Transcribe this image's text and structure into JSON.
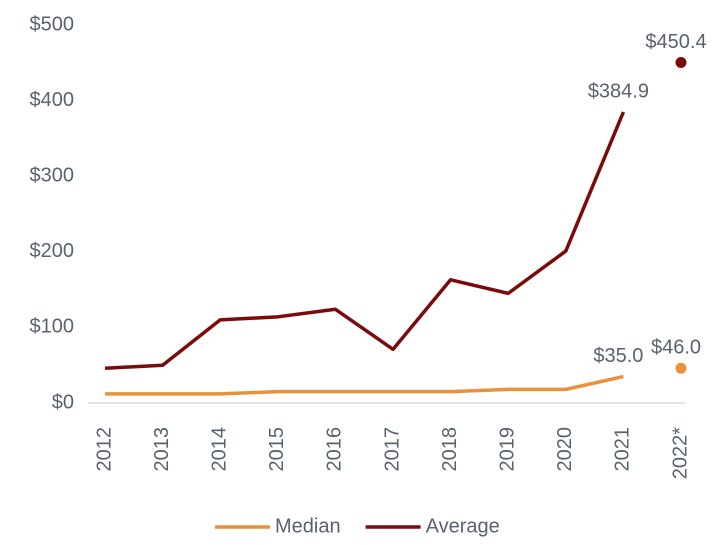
{
  "chart_data": {
    "type": "line",
    "categories": [
      "2012",
      "2013",
      "2014",
      "2015",
      "2016",
      "2017",
      "2018",
      "2019",
      "2020",
      "2021",
      "2022*"
    ],
    "series": [
      {
        "name": "Median",
        "color": "#e8913a",
        "values": [
          12,
          12,
          12,
          15,
          15,
          15,
          15,
          18,
          18,
          35.0,
          46.0
        ],
        "value_labels": [
          null,
          null,
          null,
          null,
          null,
          null,
          null,
          null,
          null,
          "$35.0",
          "$46.0"
        ]
      },
      {
        "name": "Average",
        "color": "#7b0a0a",
        "values": [
          46,
          50,
          110,
          114,
          124,
          71,
          163,
          145,
          201,
          384.9,
          450.4
        ],
        "value_labels": [
          null,
          null,
          null,
          null,
          null,
          null,
          null,
          null,
          null,
          "$384.9",
          "$450.4"
        ]
      }
    ],
    "separate_last_point": true,
    "ylim": [
      0,
      500
    ],
    "yticks": [
      {
        "value": 0,
        "label": "$0"
      },
      {
        "value": 100,
        "label": "$100"
      },
      {
        "value": 200,
        "label": "$200"
      },
      {
        "value": 300,
        "label": "$300"
      },
      {
        "value": 400,
        "label": "$400"
      },
      {
        "value": 500,
        "label": "$500"
      }
    ],
    "grid": false,
    "legend": "bottom"
  }
}
